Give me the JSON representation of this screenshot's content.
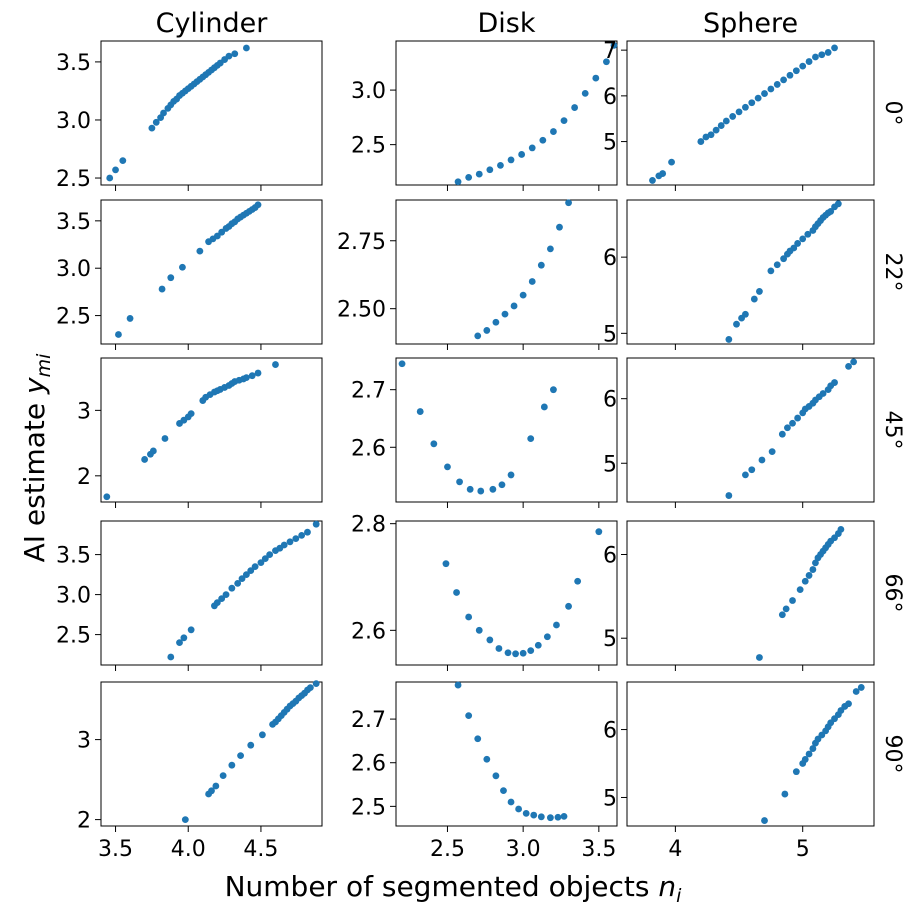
{
  "figure": {
    "xlabel": "Number of segmented objects n_i",
    "ylabel": "AI estimate y_mi",
    "columns": [
      "Cylinder",
      "Disk",
      "Sphere"
    ],
    "rows": [
      "0°",
      "22°",
      "45°",
      "66°",
      "90°"
    ],
    "point_color": "#1f77b4"
  },
  "chart_data": [
    {
      "type": "scatter",
      "column": "Cylinder",
      "row": "0°",
      "xlim": [
        3.4,
        4.92
      ],
      "ylim": [
        2.44,
        3.68
      ],
      "yticks": [
        2.5,
        3.0,
        3.5
      ],
      "ytick_labels": [
        "2.5",
        "3.0",
        "3.5"
      ],
      "x": [
        3.46,
        3.5,
        3.55,
        3.75,
        3.78,
        3.81,
        3.83,
        3.86,
        3.88,
        3.9,
        3.92,
        3.94,
        3.96,
        3.98,
        4.0,
        4.02,
        4.04,
        4.06,
        4.08,
        4.1,
        4.12,
        4.14,
        4.16,
        4.18,
        4.2,
        4.22,
        4.25,
        4.28,
        4.32,
        4.4
      ],
      "y": [
        2.5,
        2.57,
        2.65,
        2.93,
        2.98,
        3.02,
        3.06,
        3.1,
        3.13,
        3.16,
        3.18,
        3.21,
        3.23,
        3.25,
        3.27,
        3.29,
        3.31,
        3.33,
        3.35,
        3.37,
        3.39,
        3.41,
        3.43,
        3.45,
        3.47,
        3.49,
        3.52,
        3.55,
        3.57,
        3.62
      ]
    },
    {
      "type": "scatter",
      "column": "Disk",
      "row": "0°",
      "xlim": [
        2.16,
        3.62
      ],
      "ylim": [
        2.13,
        3.45
      ],
      "yticks": [
        2.5,
        3.0
      ],
      "ytick_labels": [
        "2.5",
        "3.0"
      ],
      "x": [
        2.57,
        2.64,
        2.71,
        2.78,
        2.85,
        2.92,
        2.99,
        3.06,
        3.13,
        3.2,
        3.27,
        3.34,
        3.41,
        3.48,
        3.55,
        3.6
      ],
      "y": [
        2.16,
        2.2,
        2.23,
        2.27,
        2.31,
        2.36,
        2.41,
        2.47,
        2.54,
        2.62,
        2.72,
        2.84,
        2.97,
        3.11,
        3.26,
        3.41
      ]
    },
    {
      "type": "scatter",
      "column": "Sphere",
      "row": "0°",
      "xlim": [
        3.62,
        5.56
      ],
      "ylim": [
        4.05,
        7.2
      ],
      "yticks": [
        5,
        6,
        7
      ],
      "ytick_labels": [
        "5",
        "6",
        "7"
      ],
      "x": [
        3.82,
        3.87,
        3.9,
        3.97,
        4.2,
        4.24,
        4.28,
        4.32,
        4.36,
        4.4,
        4.45,
        4.5,
        4.55,
        4.6,
        4.65,
        4.7,
        4.75,
        4.8,
        4.85,
        4.9,
        4.95,
        5.0,
        5.05,
        5.1,
        5.15,
        5.2,
        5.25
      ],
      "y": [
        4.15,
        4.25,
        4.3,
        4.55,
        5.0,
        5.1,
        5.15,
        5.25,
        5.35,
        5.45,
        5.55,
        5.65,
        5.75,
        5.85,
        5.95,
        6.05,
        6.15,
        6.25,
        6.35,
        6.45,
        6.55,
        6.65,
        6.75,
        6.85,
        6.9,
        6.95,
        7.05
      ]
    },
    {
      "type": "scatter",
      "column": "Cylinder",
      "row": "22°",
      "xlim": [
        3.4,
        4.92
      ],
      "ylim": [
        2.2,
        3.72
      ],
      "yticks": [
        2.5,
        3.0,
        3.5
      ],
      "ytick_labels": [
        "2.5",
        "3.0",
        "3.5"
      ],
      "x": [
        3.52,
        3.6,
        3.82,
        3.88,
        3.96,
        4.08,
        4.14,
        4.17,
        4.2,
        4.23,
        4.26,
        4.28,
        4.3,
        4.32,
        4.34,
        4.36,
        4.38,
        4.4,
        4.42,
        4.44,
        4.46,
        4.48
      ],
      "y": [
        2.3,
        2.47,
        2.78,
        2.9,
        3.01,
        3.18,
        3.28,
        3.31,
        3.34,
        3.38,
        3.42,
        3.44,
        3.47,
        3.49,
        3.52,
        3.54,
        3.56,
        3.58,
        3.6,
        3.62,
        3.64,
        3.67
      ]
    },
    {
      "type": "scatter",
      "column": "Disk",
      "row": "22°",
      "xlim": [
        2.16,
        3.62
      ],
      "ylim": [
        2.37,
        2.9
      ],
      "yticks": [
        2.5,
        2.75
      ],
      "ytick_labels": [
        "2.50",
        "2.75"
      ],
      "x": [
        2.7,
        2.76,
        2.82,
        2.88,
        2.94,
        3.0,
        3.06,
        3.12,
        3.18,
        3.24,
        3.3
      ],
      "y": [
        2.4,
        2.42,
        2.45,
        2.48,
        2.51,
        2.55,
        2.6,
        2.66,
        2.72,
        2.8,
        2.89
      ]
    },
    {
      "type": "scatter",
      "column": "Sphere",
      "row": "22°",
      "xlim": [
        3.62,
        5.56
      ],
      "ylim": [
        4.86,
        6.75
      ],
      "yticks": [
        5,
        6
      ],
      "ytick_labels": [
        "5",
        "6"
      ],
      "x": [
        4.42,
        4.48,
        4.52,
        4.55,
        4.62,
        4.66,
        4.75,
        4.8,
        4.85,
        4.88,
        4.9,
        4.93,
        4.96,
        5.0,
        5.04,
        5.08,
        5.1,
        5.12,
        5.14,
        5.16,
        5.18,
        5.2,
        5.22,
        5.25,
        5.28
      ],
      "y": [
        4.92,
        5.12,
        5.2,
        5.25,
        5.45,
        5.55,
        5.82,
        5.9,
        5.98,
        6.04,
        6.08,
        6.12,
        6.18,
        6.24,
        6.3,
        6.35,
        6.4,
        6.44,
        6.48,
        6.52,
        6.55,
        6.58,
        6.6,
        6.66,
        6.7
      ]
    },
    {
      "type": "scatter",
      "column": "Cylinder",
      "row": "45°",
      "xlim": [
        3.4,
        4.92
      ],
      "ylim": [
        1.6,
        3.8
      ],
      "yticks": [
        2,
        3
      ],
      "ytick_labels": [
        "2",
        "3"
      ],
      "x": [
        3.44,
        3.7,
        3.74,
        3.76,
        3.84,
        3.94,
        3.97,
        4.0,
        4.02,
        4.1,
        4.12,
        4.15,
        4.18,
        4.2,
        4.22,
        4.25,
        4.28,
        4.3,
        4.32,
        4.35,
        4.38,
        4.4,
        4.44,
        4.48,
        4.6
      ],
      "y": [
        1.68,
        2.25,
        2.33,
        2.38,
        2.57,
        2.8,
        2.85,
        2.9,
        2.95,
        3.15,
        3.2,
        3.24,
        3.28,
        3.3,
        3.32,
        3.35,
        3.38,
        3.41,
        3.44,
        3.46,
        3.48,
        3.5,
        3.53,
        3.57,
        3.7
      ]
    },
    {
      "type": "scatter",
      "column": "Disk",
      "row": "45°",
      "xlim": [
        2.16,
        3.62
      ],
      "ylim": [
        2.505,
        2.755
      ],
      "yticks": [
        2.6,
        2.7
      ],
      "ytick_labels": [
        "2.6",
        "2.7"
      ],
      "x": [
        2.2,
        2.32,
        2.41,
        2.5,
        2.58,
        2.65,
        2.72,
        2.8,
        2.86,
        2.92,
        3.05,
        3.14,
        3.2
      ],
      "y": [
        2.745,
        2.662,
        2.606,
        2.566,
        2.54,
        2.527,
        2.524,
        2.527,
        2.535,
        2.552,
        2.615,
        2.67,
        2.7
      ]
    },
    {
      "type": "scatter",
      "column": "Sphere",
      "row": "45°",
      "xlim": [
        3.62,
        5.56
      ],
      "ylim": [
        4.4,
        6.63
      ],
      "yticks": [
        5,
        6
      ],
      "ytick_labels": [
        "5",
        "6"
      ],
      "x": [
        4.42,
        4.55,
        4.6,
        4.68,
        4.76,
        4.84,
        4.88,
        4.92,
        4.96,
        5.0,
        5.02,
        5.05,
        5.08,
        5.1,
        5.13,
        5.16,
        5.2,
        5.22,
        5.25,
        5.36,
        5.4
      ],
      "y": [
        4.5,
        4.82,
        4.9,
        5.05,
        5.18,
        5.45,
        5.55,
        5.62,
        5.7,
        5.78,
        5.84,
        5.88,
        5.93,
        5.98,
        6.03,
        6.08,
        6.14,
        6.2,
        6.25,
        6.5,
        6.57
      ]
    },
    {
      "type": "scatter",
      "column": "Cylinder",
      "row": "66°",
      "xlim": [
        3.4,
        4.92
      ],
      "ylim": [
        2.12,
        3.92
      ],
      "yticks": [
        2.5,
        3.0,
        3.5
      ],
      "ytick_labels": [
        "2.5",
        "3.0",
        "3.5"
      ],
      "x": [
        3.88,
        3.94,
        3.97,
        4.02,
        4.18,
        4.2,
        4.23,
        4.26,
        4.3,
        4.34,
        4.37,
        4.4,
        4.43,
        4.46,
        4.5,
        4.53,
        4.56,
        4.6,
        4.63,
        4.66,
        4.7,
        4.74,
        4.78,
        4.82,
        4.88
      ],
      "y": [
        2.22,
        2.4,
        2.46,
        2.56,
        2.86,
        2.9,
        2.95,
        3.0,
        3.08,
        3.14,
        3.2,
        3.25,
        3.3,
        3.35,
        3.4,
        3.45,
        3.5,
        3.55,
        3.58,
        3.62,
        3.66,
        3.7,
        3.74,
        3.78,
        3.88
      ]
    },
    {
      "type": "scatter",
      "column": "Disk",
      "row": "66°",
      "xlim": [
        2.16,
        3.62
      ],
      "ylim": [
        2.535,
        2.805
      ],
      "yticks": [
        2.6,
        2.8
      ],
      "ytick_labels": [
        "2.6",
        "2.8"
      ],
      "x": [
        2.49,
        2.56,
        2.64,
        2.71,
        2.78,
        2.84,
        2.9,
        2.95,
        3.0,
        3.05,
        3.1,
        3.16,
        3.22,
        3.3,
        3.36,
        3.5
      ],
      "y": [
        2.725,
        2.671,
        2.625,
        2.6,
        2.582,
        2.566,
        2.558,
        2.556,
        2.557,
        2.562,
        2.572,
        2.588,
        2.61,
        2.645,
        2.692,
        2.785
      ]
    },
    {
      "type": "scatter",
      "column": "Sphere",
      "row": "66°",
      "xlim": [
        3.62,
        5.56
      ],
      "ylim": [
        4.68,
        6.4
      ],
      "yticks": [
        5,
        6
      ],
      "ytick_labels": [
        "5",
        "6"
      ],
      "x": [
        4.66,
        4.84,
        4.87,
        4.92,
        4.98,
        5.02,
        5.05,
        5.08,
        5.1,
        5.12,
        5.14,
        5.16,
        5.18,
        5.2,
        5.22,
        5.25,
        5.28,
        5.3
      ],
      "y": [
        4.77,
        5.28,
        5.35,
        5.45,
        5.58,
        5.68,
        5.75,
        5.82,
        5.9,
        5.96,
        6.0,
        6.04,
        6.08,
        6.12,
        6.16,
        6.2,
        6.25,
        6.3
      ]
    },
    {
      "type": "scatter",
      "column": "Cylinder",
      "row": "90°",
      "xlim": [
        3.4,
        4.92
      ],
      "ylim": [
        1.92,
        3.72
      ],
      "yticks": [
        2,
        3
      ],
      "ytick_labels": [
        "2",
        "3"
      ],
      "x": [
        3.98,
        4.14,
        4.16,
        4.19,
        4.24,
        4.3,
        4.36,
        4.43,
        4.51,
        4.58,
        4.6,
        4.62,
        4.64,
        4.66,
        4.68,
        4.7,
        4.72,
        4.74,
        4.76,
        4.78,
        4.8,
        4.82,
        4.84,
        4.88
      ],
      "y": [
        2.0,
        2.32,
        2.36,
        2.42,
        2.55,
        2.68,
        2.8,
        2.93,
        3.06,
        3.19,
        3.22,
        3.26,
        3.3,
        3.34,
        3.38,
        3.42,
        3.45,
        3.48,
        3.52,
        3.55,
        3.58,
        3.62,
        3.65,
        3.7
      ]
    },
    {
      "type": "scatter",
      "column": "Disk",
      "row": "90°",
      "xlim": [
        2.16,
        3.62
      ],
      "ylim": [
        2.455,
        2.785
      ],
      "yticks": [
        2.5,
        2.6,
        2.7
      ],
      "ytick_labels": [
        "2.5",
        "2.6",
        "2.7"
      ],
      "x": [
        2.57,
        2.64,
        2.7,
        2.76,
        2.82,
        2.87,
        2.92,
        2.97,
        3.02,
        3.07,
        3.12,
        3.18,
        3.23,
        3.27
      ],
      "y": [
        2.778,
        2.708,
        2.655,
        2.608,
        2.57,
        2.536,
        2.51,
        2.494,
        2.484,
        2.48,
        2.476,
        2.474,
        2.475,
        2.477
      ]
    },
    {
      "type": "scatter",
      "column": "Sphere",
      "row": "90°",
      "xlim": [
        3.62,
        5.56
      ],
      "ylim": [
        4.58,
        6.7
      ],
      "yticks": [
        5,
        6
      ],
      "ytick_labels": [
        "5",
        "6"
      ],
      "x": [
        4.7,
        4.86,
        4.95,
        5.0,
        5.02,
        5.05,
        5.08,
        5.1,
        5.12,
        5.15,
        5.18,
        5.2,
        5.22,
        5.25,
        5.28,
        5.3,
        5.33,
        5.36,
        5.42,
        5.46
      ],
      "y": [
        4.66,
        5.05,
        5.38,
        5.5,
        5.56,
        5.64,
        5.72,
        5.8,
        5.86,
        5.92,
        5.98,
        6.04,
        6.1,
        6.16,
        6.22,
        6.28,
        6.34,
        6.38,
        6.56,
        6.62
      ]
    }
  ],
  "shared_x_ticks": [
    {
      "column": "Cylinder",
      "ticks": [
        3.5,
        4.0,
        4.5
      ],
      "labels": [
        "3.5",
        "4.0",
        "4.5"
      ]
    },
    {
      "column": "Disk",
      "ticks": [
        2.5,
        3.0,
        3.5
      ],
      "labels": [
        "2.5",
        "3.0",
        "3.5"
      ]
    },
    {
      "column": "Sphere",
      "ticks": [
        4,
        5
      ],
      "labels": [
        "4",
        "5"
      ]
    }
  ]
}
